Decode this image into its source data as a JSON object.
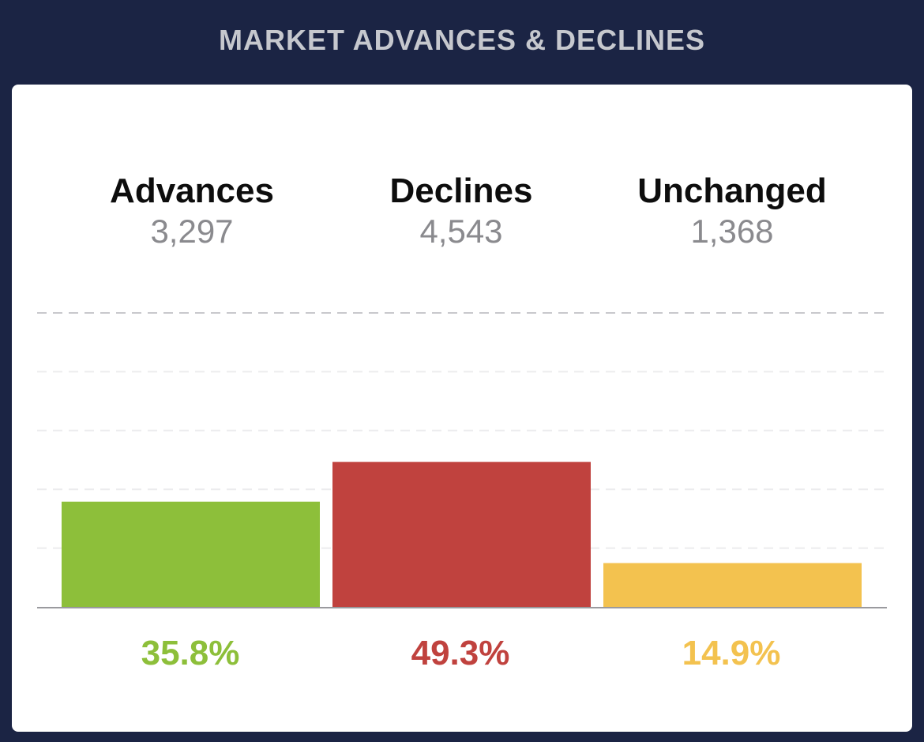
{
  "header": {
    "title": "MARKET ADVANCES & DECLINES"
  },
  "stats": [
    {
      "label": "Advances",
      "value": "3,297"
    },
    {
      "label": "Declines",
      "value": "4,543"
    },
    {
      "label": "Unchanged",
      "value": "1,368"
    }
  ],
  "percentages": [
    {
      "label": "35.8%",
      "color": "#8dbf3a"
    },
    {
      "label": "49.3%",
      "color": "#c0423e"
    },
    {
      "label": "14.9%",
      "color": "#f3c24f"
    }
  ],
  "chart_data": {
    "type": "bar",
    "categories": [
      "Advances",
      "Declines",
      "Unchanged"
    ],
    "values": [
      35.8,
      49.3,
      14.9
    ],
    "colors": [
      "#8dbf3a",
      "#c0423e",
      "#f3c24f"
    ],
    "ylim": [
      0,
      100
    ],
    "grid": true
  }
}
